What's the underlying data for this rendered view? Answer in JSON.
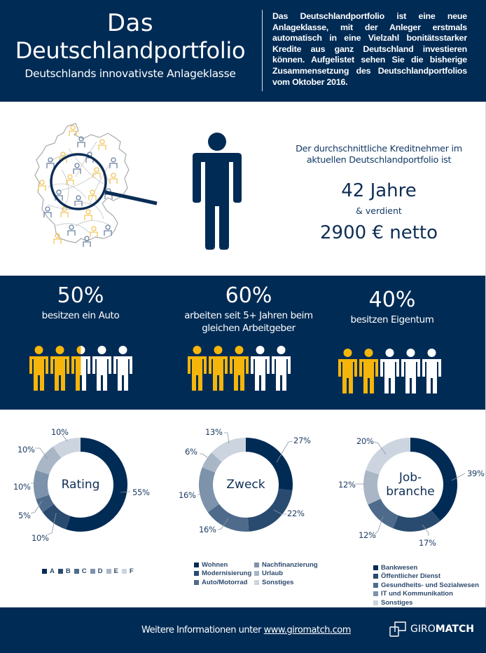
{
  "header": {
    "title_line1": "Das",
    "title_line2": "Deutschlandportfolio",
    "subtitle": "Deutschlands innovativste Anlageklasse",
    "description": "Das Deutschlandportfolio ist eine neue Anlageklasse, mit der Anleger erstmals automatisch in eine Vielzahl bonitätsstarker Kredite aus ganz Deutschland investieren können. Aufgelistet sehen Sie die bisherige Zusammensetzung des Deutschlandportfolios vom Oktober 2016."
  },
  "borrower": {
    "lead": "Der durchschnittliche Kreditnehmer im aktuellen Deutschlandportfolio ist",
    "age": "42 Jahre",
    "connector": "& verdient",
    "income": "2900 € netto",
    "icons": [
      "germany-map-magnifier-icon",
      "person-icon"
    ]
  },
  "stats": [
    {
      "percent": "50%",
      "label": "besitzen ein Auto",
      "filled": 2.5,
      "total": 5
    },
    {
      "percent": "60%",
      "label": "arbeiten seit 5+ Jahren beim gleichen Arbeitgeber",
      "filled": 3,
      "total": 5
    },
    {
      "percent": "40%",
      "label": "besitzen Eigentum",
      "filled": 2,
      "total": 5
    }
  ],
  "colors": {
    "navy": "#002b55",
    "accent_yellow": "#f5b50a",
    "white": "#ffffff",
    "shades": [
      "#002b55",
      "#2a4b70",
      "#4f6b8c",
      "#7d92ab",
      "#a9b6c6",
      "#ccd5df"
    ]
  },
  "chart_data": [
    {
      "type": "pie",
      "donut": true,
      "title": "Rating",
      "categories": [
        "A",
        "B",
        "C",
        "D",
        "E",
        "F"
      ],
      "values": [
        55,
        10,
        5,
        10,
        10,
        10
      ],
      "labels": [
        "55%",
        "10%",
        "5%",
        "10%",
        "10%",
        "10%"
      ],
      "legend_position": "bottom"
    },
    {
      "type": "pie",
      "donut": true,
      "title": "Zweck",
      "categories": [
        "Wohnen",
        "Modernisierung",
        "Auto/Motorrad",
        "Nachfinanzierung",
        "Urlaub",
        "Sonstiges"
      ],
      "values": [
        27,
        22,
        16,
        16,
        6,
        13
      ],
      "labels": [
        "27%",
        "22%",
        "16%",
        "16%",
        "6%",
        "13%"
      ],
      "legend_position": "bottom"
    },
    {
      "type": "pie",
      "donut": true,
      "title": "Job-branche",
      "categories": [
        "Bankwesen",
        "Öffentlicher Dienst",
        "Gesundheits- und Sozialwesen",
        "IT und Kommunikation",
        "Sonstiges"
      ],
      "values": [
        39,
        17,
        12,
        12,
        20
      ],
      "labels": [
        "39%",
        "17%",
        "12%",
        "12%",
        "20%"
      ],
      "legend_position": "bottom"
    }
  ],
  "charts": {
    "rating": {
      "center": "Rating",
      "labels": [
        "55%",
        "10%",
        "5%",
        "10%",
        "10%",
        "10%"
      ],
      "legend": [
        "A",
        "B",
        "C",
        "D",
        "E",
        "F"
      ]
    },
    "zweck": {
      "center": "Zweck",
      "labels": [
        "27%",
        "22%",
        "16%",
        "16%",
        "6%",
        "13%"
      ],
      "legend": [
        "Wohnen",
        "Modernisierung",
        "Auto/Motorrad",
        "Nachfinanzierung",
        "Urlaub",
        "Sonstiges"
      ]
    },
    "job": {
      "center_line1": "Job-",
      "center_line2": "branche",
      "labels": [
        "39%",
        "17%",
        "12%",
        "12%",
        "20%"
      ],
      "legend": [
        "Bankwesen",
        "Öffentlicher Dienst",
        "Gesundheits- und Sozialwesen",
        "IT und Kommunikation",
        "Sonstiges"
      ]
    }
  },
  "footer": {
    "info_text": "Weitere Informationen unter ",
    "link": "www.giromatch.com",
    "logo_light": "GIRO",
    "logo_bold": "MATCH"
  }
}
